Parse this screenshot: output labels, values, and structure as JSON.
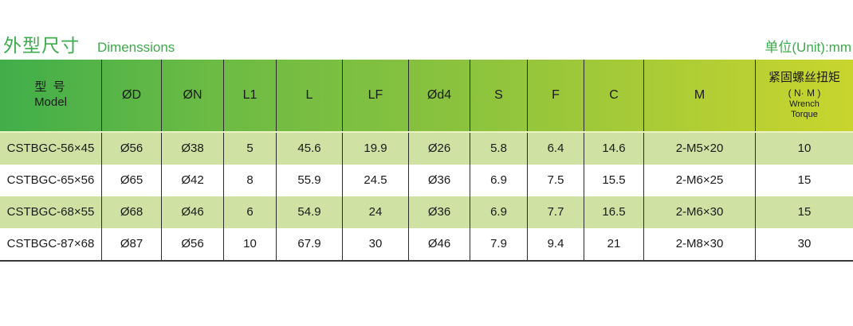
{
  "page": {
    "title_zh": "外型尺寸",
    "title_en": "Dimenssions",
    "unit_label": "单位(Unit):mm"
  },
  "colors": {
    "accent_green": "#3cab4b",
    "header_gradient_left": "#41ae4a",
    "header_gradient_right": "#c9d52e",
    "stripe_green": "#cfe2a3",
    "row_white": "#ffffff",
    "border_dark": "#2b2b2b",
    "text_dark": "#1a1a1a"
  },
  "table": {
    "header": {
      "model_zh": "型 号",
      "model_en": "Model",
      "d": "ØD",
      "n": "ØN",
      "l1": "L1",
      "l": "L",
      "lf": "LF",
      "d4": "Ød4",
      "s": "S",
      "f": "F",
      "c": "C",
      "m": "M",
      "torque_zh": "紧固螺丝扭矩",
      "torque_unit": "( N· M )",
      "torque_en_line1": "Wrench",
      "torque_en_line2": "Torque"
    },
    "rows": [
      {
        "model": "CSTBGC-56×45",
        "d": "Ø56",
        "n": "Ø38",
        "l1": "5",
        "l": "45.6",
        "lf": "19.9",
        "d4": "Ø26",
        "s": "5.8",
        "f": "6.4",
        "c": "14.6",
        "m": "2-M5×20",
        "torque": "10"
      },
      {
        "model": "CSTBGC-65×56",
        "d": "Ø65",
        "n": "Ø42",
        "l1": "8",
        "l": "55.9",
        "lf": "24.5",
        "d4": "Ø36",
        "s": "6.9",
        "f": "7.5",
        "c": "15.5",
        "m": "2-M6×25",
        "torque": "15"
      },
      {
        "model": "CSTBGC-68×55",
        "d": "Ø68",
        "n": "Ø46",
        "l1": "6",
        "l": "54.9",
        "lf": "24",
        "d4": "Ø36",
        "s": "6.9",
        "f": "7.7",
        "c": "16.5",
        "m": "2-M6×30",
        "torque": "15"
      },
      {
        "model": "CSTBGC-87×68",
        "d": "Ø87",
        "n": "Ø56",
        "l1": "10",
        "l": "67.9",
        "lf": "30",
        "d4": "Ø46",
        "s": "7.9",
        "f": "9.4",
        "c": "21",
        "m": "2-M8×30",
        "torque": "30"
      }
    ]
  }
}
